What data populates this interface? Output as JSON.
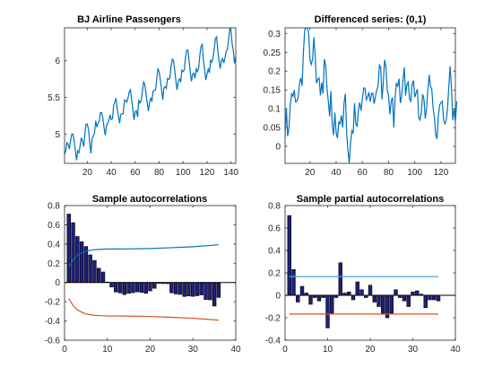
{
  "figure": {
    "background": "#ffffff",
    "axis_color": "#262626"
  },
  "colors": {
    "series": "#0072bd",
    "bound_orange": "#d95319",
    "bar_fill": "#1f1f7a",
    "bar_edge": "#000000",
    "pacf_bound": "#4fa3d9"
  },
  "chart_data": [
    {
      "type": "line",
      "title": "BJ Airline Passengers",
      "xlabel": "",
      "ylabel": "",
      "xlim": [
        1,
        144
      ],
      "ylim": [
        4.6,
        6.45
      ],
      "xticks": [
        20,
        40,
        60,
        80,
        100,
        120,
        140
      ],
      "yticks": [
        5,
        5.5,
        6
      ],
      "ytick_labels": [
        "5",
        "5.5",
        "6"
      ],
      "x_start": 1,
      "series": [
        {
          "values": [
            4.718,
            4.771,
            4.883,
            4.86,
            4.796,
            4.905,
            5.0,
            5.0,
            4.913,
            4.779,
            4.644,
            4.771,
            4.745,
            4.836,
            4.949,
            4.905,
            4.828,
            5.004,
            5.136,
            5.136,
            5.063,
            4.89,
            4.736,
            4.942,
            4.977,
            5.011,
            5.182,
            5.094,
            5.147,
            5.182,
            5.293,
            5.293,
            5.215,
            5.088,
            4.984,
            5.112,
            5.142,
            5.193,
            5.263,
            5.198,
            5.209,
            5.384,
            5.438,
            5.489,
            5.342,
            5.252,
            5.147,
            5.268,
            5.278,
            5.278,
            5.464,
            5.46,
            5.434,
            5.493,
            5.576,
            5.606,
            5.468,
            5.352,
            5.193,
            5.303,
            5.318,
            5.236,
            5.46,
            5.425,
            5.455,
            5.576,
            5.71,
            5.68,
            5.557,
            5.434,
            5.313,
            5.434,
            5.489,
            5.451,
            5.587,
            5.595,
            5.598,
            5.753,
            5.897,
            5.849,
            5.744,
            5.613,
            5.468,
            5.628,
            5.649,
            5.624,
            5.759,
            5.746,
            5.763,
            5.924,
            6.023,
            6.004,
            5.872,
            5.724,
            5.602,
            5.724,
            5.753,
            5.708,
            5.875,
            5.852,
            5.872,
            6.045,
            6.142,
            6.146,
            6.001,
            5.849,
            5.72,
            5.817,
            5.829,
            5.763,
            5.892,
            5.852,
            5.894,
            6.075,
            6.196,
            6.225,
            6.001,
            5.883,
            5.737,
            5.82,
            5.886,
            5.835,
            6.006,
            5.981,
            6.04,
            6.157,
            6.306,
            6.326,
            6.138,
            6.009,
            5.892,
            6.004,
            6.033,
            5.969,
            6.038,
            6.133,
            6.157,
            6.282,
            6.433,
            6.407,
            6.23,
            6.133,
            5.966,
            6.068
          ]
        }
      ]
    },
    {
      "type": "line",
      "title": "Differenced series: (0,1)",
      "xlabel": "",
      "ylabel": "",
      "xlim": [
        1,
        131
      ],
      "ylim": [
        -0.045,
        0.315
      ],
      "xticks": [
        20,
        40,
        60,
        80,
        100,
        120
      ],
      "yticks": [
        0,
        0.05,
        0.1,
        0.15,
        0.2,
        0.25,
        0.3
      ],
      "ytick_labels": [
        "0",
        "0.05",
        "0.1",
        "0.15",
        "0.2",
        "0.25",
        "0.3"
      ],
      "x_start": 1,
      "series": [
        {
          "values": [
            0.027,
            0.1,
            0.027,
            0.05,
            0.11,
            0.14,
            0.133,
            0.15,
            0.118,
            0.12,
            0.13,
            0.166,
            0.182,
            0.161,
            0.25,
            0.31,
            0.38,
            0.325,
            0.3,
            0.23,
            0.218,
            0.232,
            0.29,
            0.24,
            0.168,
            0.178,
            0.182,
            0.135,
            0.17,
            0.14,
            0.232,
            0.215,
            0.153,
            0.12,
            0.08,
            0.147,
            0.06,
            0.03,
            0.09,
            0.035,
            0.022,
            0.065,
            0.06,
            0.082,
            0.05,
            0.115,
            0.14,
            0.035,
            -0.01,
            -0.05,
            0.01,
            0.042,
            0.036,
            0.115,
            0.06,
            0.052,
            0.097,
            0.117,
            0.095,
            0.126,
            0.155,
            0.155,
            0.124,
            0.131,
            0.144,
            0.119,
            0.14,
            0.142,
            0.113,
            0.133,
            0.15,
            0.16,
            0.216,
            0.21,
            0.125,
            0.173,
            0.23,
            0.211,
            0.15,
            0.135,
            0.085,
            0.12,
            0.13,
            0.05,
            0.13,
            0.167,
            0.16,
            0.18,
            0.115,
            0.134,
            0.176,
            0.21,
            0.135,
            0.165,
            0.171,
            0.126,
            0.12,
            0.165,
            0.175,
            0.131,
            0.142,
            0.152,
            0.077,
            0.07,
            0.09,
            0.139,
            0.126,
            0.074,
            0.1,
            0.15,
            0.19,
            0.16,
            0.151,
            0.102,
            0.076,
            0.031,
            0.02,
            0.082,
            0.11,
            0.116,
            0.12,
            0.07,
            0.06,
            0.07,
            0.1,
            0.16,
            0.213,
            0.156,
            0.07,
            0.1,
            0.065,
            0.12
          ]
        }
      ]
    },
    {
      "type": "bar",
      "title": "Sample autocorrelations",
      "xlabel": "",
      "ylabel": "",
      "xlim": [
        0,
        40
      ],
      "ylim": [
        -0.6,
        0.8
      ],
      "xticks": [
        0,
        10,
        20,
        30,
        40
      ],
      "yticks": [
        -0.6,
        -0.4,
        -0.2,
        0,
        0.2,
        0.4,
        0.6,
        0.8
      ],
      "ytick_labels": [
        "-0.6",
        "-0.4",
        "-0.2",
        "0",
        "0.2",
        "0.4",
        "0.6",
        "0.8"
      ],
      "lags": [
        1,
        2,
        3,
        4,
        5,
        6,
        7,
        8,
        9,
        10,
        11,
        12,
        13,
        14,
        15,
        16,
        17,
        18,
        19,
        20,
        21,
        22,
        23,
        24,
        25,
        26,
        27,
        28,
        29,
        30,
        31,
        32,
        33,
        34,
        35,
        36
      ],
      "values": [
        0.711,
        0.622,
        0.478,
        0.423,
        0.374,
        0.287,
        0.229,
        0.148,
        0.109,
        0.005,
        -0.047,
        -0.099,
        -0.108,
        -0.126,
        -0.112,
        -0.106,
        -0.097,
        -0.103,
        -0.112,
        -0.087,
        -0.06,
        -0.009,
        -0.011,
        -0.012,
        -0.107,
        -0.119,
        -0.124,
        -0.145,
        -0.14,
        -0.144,
        -0.138,
        -0.129,
        -0.177,
        -0.18,
        -0.245,
        -0.155
      ],
      "upper_bound": [
        [
          1,
          0.167
        ],
        [
          2,
          0.24
        ],
        [
          3,
          0.285
        ],
        [
          4,
          0.309
        ],
        [
          5,
          0.326
        ],
        [
          6,
          0.335
        ],
        [
          7,
          0.341
        ],
        [
          8,
          0.344
        ],
        [
          9,
          0.346
        ],
        [
          10,
          0.348
        ],
        [
          15,
          0.349
        ],
        [
          20,
          0.353
        ],
        [
          25,
          0.362
        ],
        [
          30,
          0.372
        ],
        [
          33,
          0.382
        ],
        [
          36,
          0.392
        ]
      ],
      "lower_bound": [
        [
          1,
          -0.167
        ],
        [
          2,
          -0.24
        ],
        [
          3,
          -0.285
        ],
        [
          4,
          -0.309
        ],
        [
          5,
          -0.326
        ],
        [
          6,
          -0.335
        ],
        [
          7,
          -0.341
        ],
        [
          8,
          -0.344
        ],
        [
          9,
          -0.346
        ],
        [
          10,
          -0.348
        ],
        [
          15,
          -0.349
        ],
        [
          20,
          -0.353
        ],
        [
          25,
          -0.362
        ],
        [
          30,
          -0.372
        ],
        [
          33,
          -0.382
        ],
        [
          36,
          -0.392
        ]
      ]
    },
    {
      "type": "bar",
      "title": "Sample partial autocorrelations",
      "xlabel": "",
      "ylabel": "",
      "xlim": [
        0,
        40
      ],
      "ylim": [
        -0.4,
        0.8
      ],
      "xticks": [
        0,
        10,
        20,
        30,
        40
      ],
      "yticks": [
        -0.4,
        -0.2,
        0,
        0.2,
        0.4,
        0.6,
        0.8
      ],
      "ytick_labels": [
        "-0.4",
        "-0.2",
        "0",
        "0.2",
        "0.4",
        "0.6",
        "0.8"
      ],
      "lags": [
        1,
        2,
        3,
        4,
        5,
        6,
        7,
        8,
        9,
        10,
        11,
        12,
        13,
        14,
        15,
        16,
        17,
        18,
        19,
        20,
        21,
        22,
        23,
        24,
        25,
        26,
        27,
        28,
        29,
        30,
        31,
        32,
        33,
        34,
        35,
        36
      ],
      "values": [
        0.711,
        0.23,
        -0.06,
        0.08,
        0.02,
        -0.08,
        -0.02,
        -0.05,
        -0.02,
        -0.29,
        -0.16,
        -0.02,
        0.29,
        0.02,
        0.03,
        -0.04,
        0.12,
        0.05,
        -0.02,
        0.09,
        -0.06,
        -0.1,
        -0.17,
        -0.2,
        -0.16,
        0.05,
        -0.02,
        -0.05,
        -0.1,
        0.03,
        0.04,
        0.01,
        -0.11,
        -0.04,
        -0.04,
        -0.05
      ],
      "upper_bound": [
        [
          1,
          0.167
        ],
        [
          36,
          0.167
        ]
      ],
      "lower_bound": [
        [
          1,
          -0.167
        ],
        [
          36,
          -0.167
        ]
      ]
    }
  ]
}
